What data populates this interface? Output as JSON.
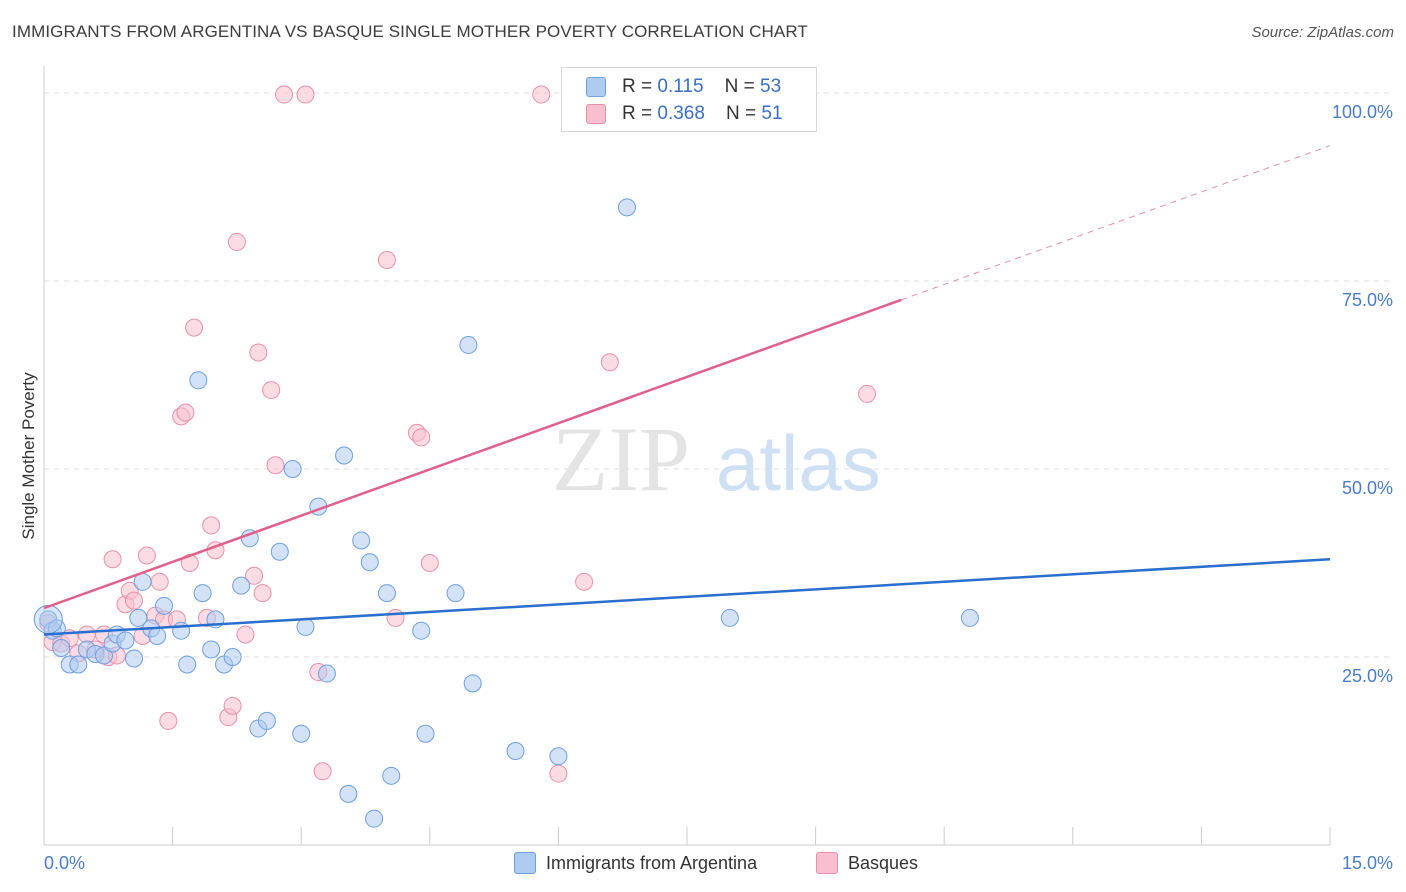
{
  "title": "IMMIGRANTS FROM ARGENTINA VS BASQUE SINGLE MOTHER POVERTY CORRELATION CHART",
  "source": "Source: ZipAtlas.com",
  "watermark": {
    "zip": "ZIP",
    "atlas": "atlas"
  },
  "legend": {
    "rows": [
      {
        "r_label": "R = ",
        "r_value": "0.115",
        "n_label": "N = ",
        "n_value": "53",
        "color": "#aecbf0"
      },
      {
        "r_label": "R = ",
        "r_value": "0.368",
        "n_label": "N = ",
        "n_value": "51",
        "color": "#f7bfcf"
      }
    ]
  },
  "bottom_legend": [
    "Immigrants from Argentina",
    "Basques"
  ],
  "colors": {
    "blue_fill": "#aecbf0",
    "blue_stroke": "#6f9fe0",
    "blue_line": "#2a6fcf",
    "pink_fill": "#f7bfcf",
    "pink_stroke": "#e890ab",
    "pink_line": "#e0608a",
    "axis_text": "#4a7cc9"
  },
  "chart_data": {
    "type": "scatter",
    "title": "IMMIGRANTS FROM ARGENTINA VS BASQUE SINGLE MOTHER POVERTY CORRELATION CHART",
    "xlabel": "",
    "ylabel": "Single Mother Poverty",
    "xlim": [
      0,
      15
    ],
    "ylim": [
      0,
      102
    ],
    "x_tick_labels": [
      "0.0%",
      "15.0%"
    ],
    "y_ticks": [
      25,
      50,
      75,
      100
    ],
    "y_tick_labels": [
      "25.0%",
      "50.0%",
      "75.0%",
      "100.0%"
    ],
    "grid": "horizontal dashed",
    "legend_position": "top-center",
    "series": [
      {
        "name": "Immigrants from Argentina",
        "r": 0.115,
        "n": 53,
        "trend": {
          "x": [
            0,
            15
          ],
          "y": [
            28.0,
            38.0
          ]
        },
        "points": [
          [
            0.05,
            30.0
          ],
          [
            0.1,
            28.5
          ],
          [
            0.15,
            28.8
          ],
          [
            0.2,
            26.2
          ],
          [
            0.3,
            24.0
          ],
          [
            0.4,
            24.0
          ],
          [
            0.5,
            26.0
          ],
          [
            0.6,
            25.4
          ],
          [
            0.7,
            25.2
          ],
          [
            0.8,
            26.8
          ],
          [
            0.85,
            28.0
          ],
          [
            0.95,
            27.2
          ],
          [
            1.05,
            24.8
          ],
          [
            1.1,
            30.2
          ],
          [
            1.15,
            35.0
          ],
          [
            1.25,
            28.8
          ],
          [
            1.32,
            27.8
          ],
          [
            1.4,
            31.8
          ],
          [
            1.6,
            28.5
          ],
          [
            1.67,
            24.0
          ],
          [
            1.8,
            61.8
          ],
          [
            1.85,
            33.5
          ],
          [
            1.95,
            26.0
          ],
          [
            2.0,
            30.0
          ],
          [
            2.1,
            24.0
          ],
          [
            2.2,
            25.0
          ],
          [
            2.3,
            34.5
          ],
          [
            2.4,
            40.8
          ],
          [
            2.5,
            15.5
          ],
          [
            2.6,
            16.5
          ],
          [
            2.75,
            39.0
          ],
          [
            2.9,
            50.0
          ],
          [
            3.0,
            14.8
          ],
          [
            3.05,
            29.0
          ],
          [
            3.2,
            45.0
          ],
          [
            3.3,
            22.8
          ],
          [
            3.5,
            51.8
          ],
          [
            3.55,
            6.8
          ],
          [
            3.7,
            40.5
          ],
          [
            3.8,
            37.6
          ],
          [
            3.85,
            3.5
          ],
          [
            4.0,
            33.5
          ],
          [
            4.05,
            9.2
          ],
          [
            4.4,
            28.5
          ],
          [
            4.45,
            14.8
          ],
          [
            4.8,
            33.5
          ],
          [
            4.95,
            66.5
          ],
          [
            5.0,
            21.5
          ],
          [
            5.5,
            12.5
          ],
          [
            6.0,
            11.8
          ],
          [
            6.8,
            84.8
          ],
          [
            8.0,
            30.2
          ],
          [
            10.8,
            30.2
          ]
        ]
      },
      {
        "name": "Basques",
        "r": 0.368,
        "n": 51,
        "trend": {
          "x": [
            0,
            10.0
          ],
          "y": [
            31.5,
            72.5
          ]
        },
        "points": [
          [
            0.05,
            29.5
          ],
          [
            0.1,
            27.0
          ],
          [
            0.2,
            26.8
          ],
          [
            0.3,
            27.5
          ],
          [
            0.7,
            28.0
          ],
          [
            0.75,
            25.0
          ],
          [
            0.8,
            38.0
          ],
          [
            0.85,
            25.2
          ],
          [
            0.95,
            32.0
          ],
          [
            1.0,
            33.8
          ],
          [
            1.05,
            32.5
          ],
          [
            1.15,
            27.8
          ],
          [
            1.2,
            38.5
          ],
          [
            1.3,
            30.5
          ],
          [
            1.35,
            35.0
          ],
          [
            1.4,
            30.0
          ],
          [
            1.45,
            16.5
          ],
          [
            1.55,
            30.0
          ],
          [
            1.6,
            57.0
          ],
          [
            1.65,
            57.5
          ],
          [
            1.7,
            37.5
          ],
          [
            1.75,
            68.8
          ],
          [
            1.9,
            30.2
          ],
          [
            1.95,
            42.5
          ],
          [
            2.0,
            39.2
          ],
          [
            2.15,
            17.0
          ],
          [
            2.2,
            18.5
          ],
          [
            2.25,
            80.2
          ],
          [
            2.35,
            28.0
          ],
          [
            2.45,
            35.8
          ],
          [
            2.5,
            65.5
          ],
          [
            2.55,
            33.5
          ],
          [
            2.65,
            60.5
          ],
          [
            2.7,
            50.5
          ],
          [
            2.8,
            99.8
          ],
          [
            3.05,
            99.8
          ],
          [
            3.2,
            23.0
          ],
          [
            3.25,
            9.8
          ],
          [
            4.0,
            77.8
          ],
          [
            4.1,
            30.2
          ],
          [
            4.35,
            54.8
          ],
          [
            4.4,
            54.2
          ],
          [
            4.5,
            37.5
          ],
          [
            5.8,
            99.8
          ],
          [
            6.0,
            9.5
          ],
          [
            6.3,
            35.0
          ],
          [
            6.6,
            64.2
          ],
          [
            9.6,
            60.0
          ],
          [
            0.5,
            28.0
          ],
          [
            0.6,
            26.0
          ],
          [
            0.4,
            25.5
          ]
        ]
      }
    ]
  }
}
